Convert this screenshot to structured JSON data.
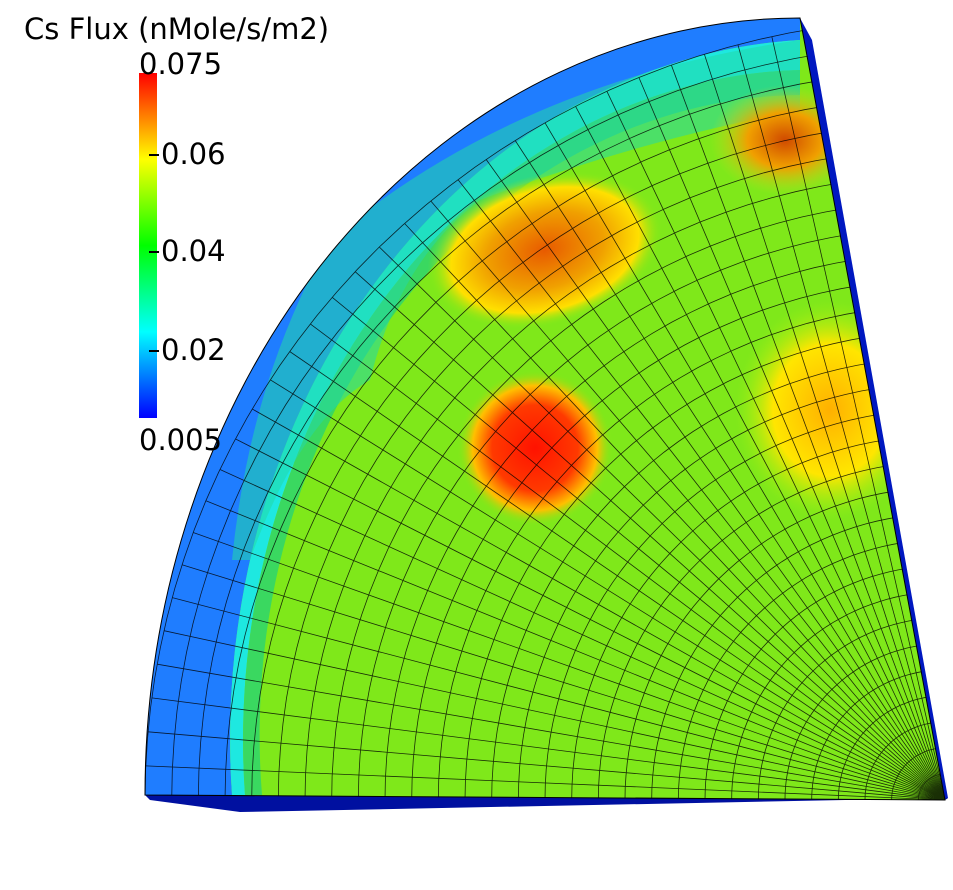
{
  "legend": {
    "title": "Cs Flux (nMole/s/m2)",
    "range": [
      0.005,
      0.075
    ],
    "ticks": [
      "0.075",
      "0.06",
      "0.04",
      "0.02",
      "0.005"
    ],
    "colormap": [
      "#0000ff",
      "#00ffff",
      "#00ff00",
      "#ffff00",
      "#ff0000"
    ]
  },
  "mesh": {
    "base_color": "#7fe81a",
    "outer_band_color": "#1a7fff",
    "hotspot_color": "#ff1a00",
    "grid_color": "#000000"
  }
}
